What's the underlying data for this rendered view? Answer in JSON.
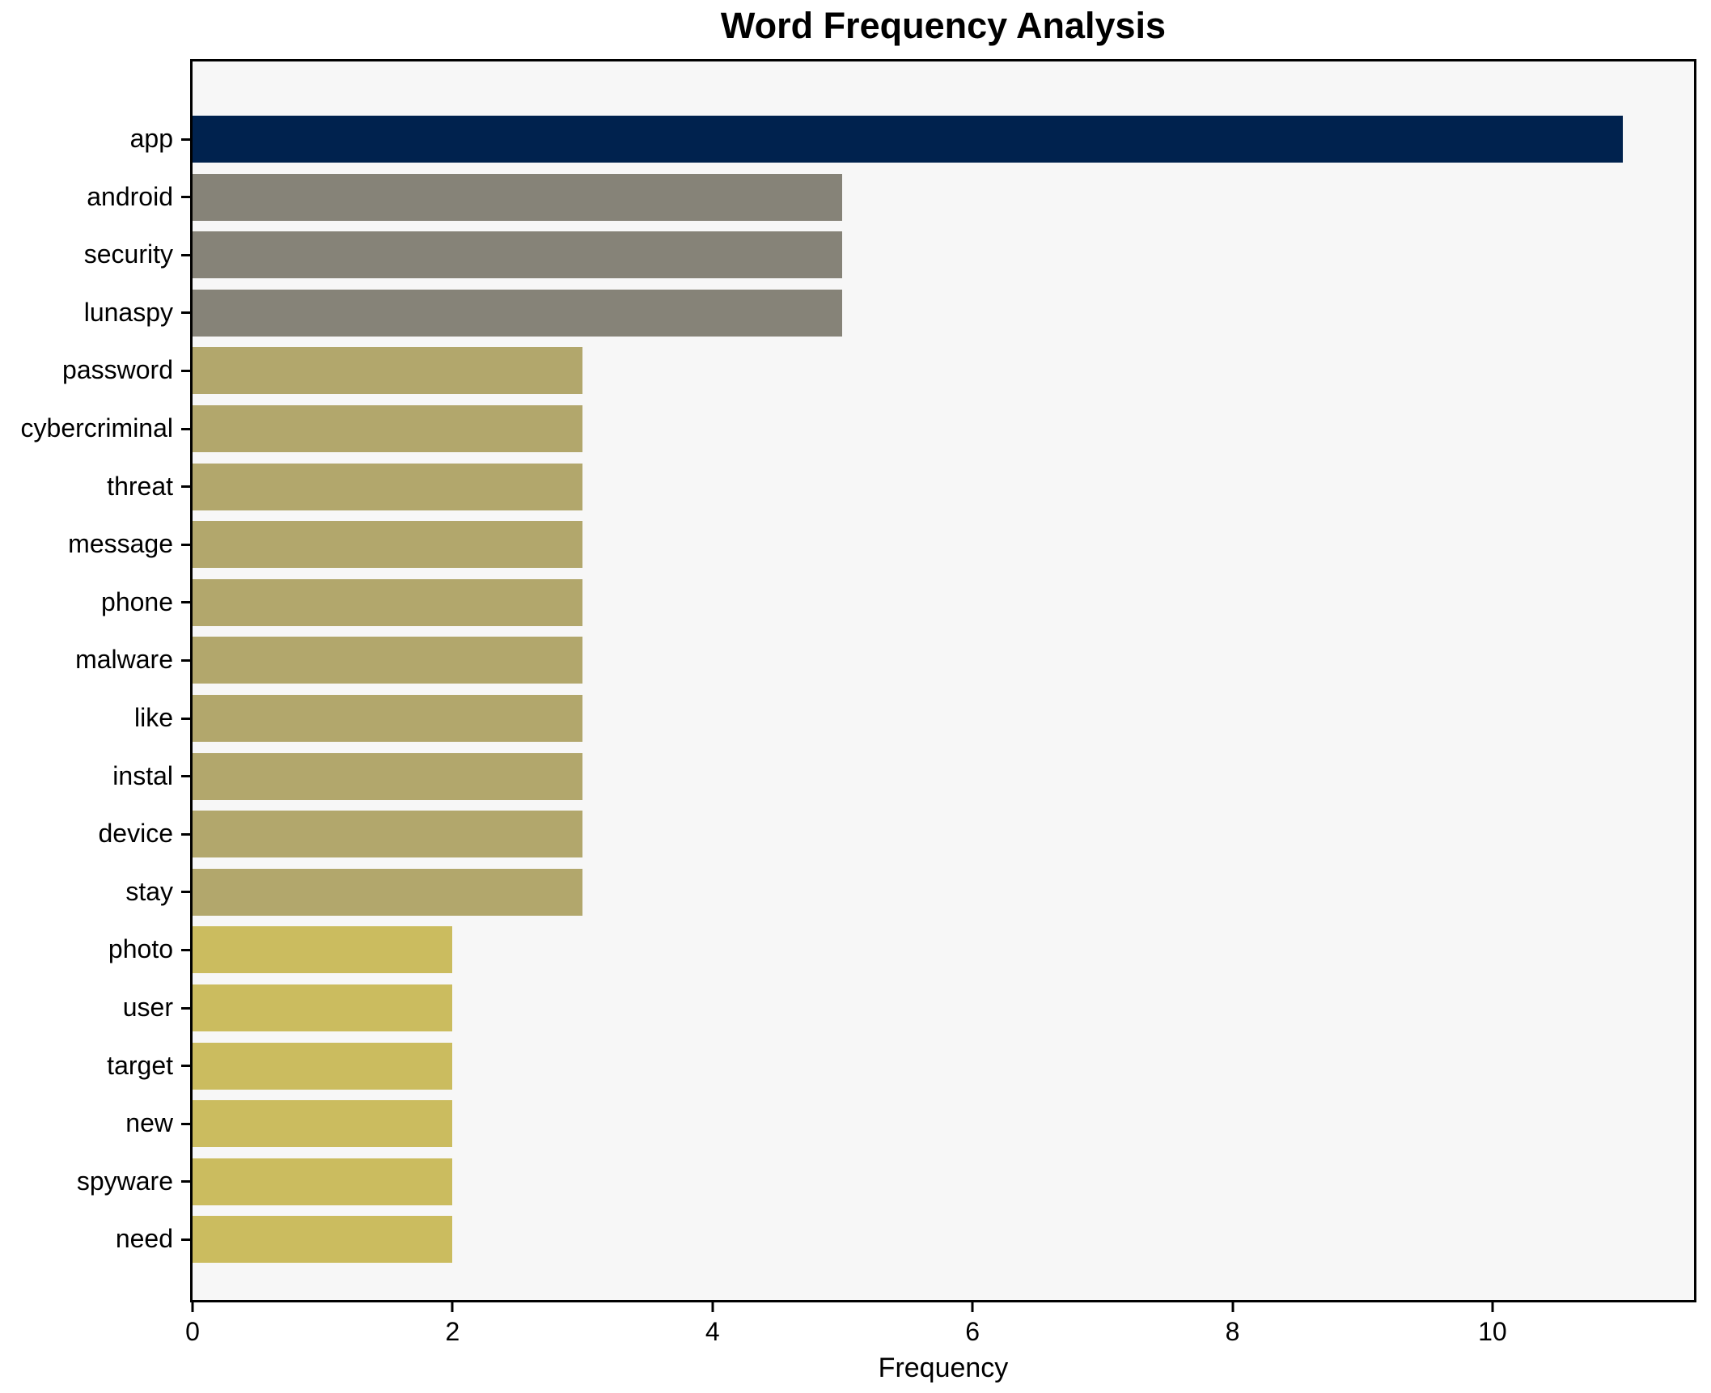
{
  "title": "Word Frequency Analysis",
  "axes": {
    "xlabel": "Frequency"
  },
  "colors": {
    "figure_background": "#ffffff",
    "plot_background": "#f7f7f7",
    "spine": "#000000",
    "text": "#000000",
    "navy": "#00224e",
    "gray": "#868378",
    "khaki": "#b2a76c",
    "yellow": "#cbbc5f"
  },
  "chart_data": {
    "type": "bar",
    "orientation": "horizontal",
    "title": "Word Frequency Analysis",
    "xlabel": "Frequency",
    "ylabel": "",
    "categories": [
      "app",
      "android",
      "security",
      "lunaspy",
      "password",
      "cybercriminal",
      "threat",
      "message",
      "phone",
      "malware",
      "like",
      "instal",
      "device",
      "stay",
      "photo",
      "user",
      "target",
      "new",
      "spyware",
      "need"
    ],
    "values": [
      11,
      5,
      5,
      5,
      3,
      3,
      3,
      3,
      3,
      3,
      3,
      3,
      3,
      3,
      2,
      2,
      2,
      2,
      2,
      2
    ],
    "bar_colors": [
      "#00224e",
      "#868378",
      "#868378",
      "#868378",
      "#b2a76c",
      "#b2a76c",
      "#b2a76c",
      "#b2a76c",
      "#b2a76c",
      "#b2a76c",
      "#b2a76c",
      "#b2a76c",
      "#b2a76c",
      "#b2a76c",
      "#cbbc5f",
      "#cbbc5f",
      "#cbbc5f",
      "#cbbc5f",
      "#cbbc5f",
      "#cbbc5f"
    ],
    "xlim": [
      0,
      11.55
    ],
    "xticks": [
      0,
      2,
      4,
      6,
      8,
      10
    ],
    "grid": false,
    "legend": false
  }
}
